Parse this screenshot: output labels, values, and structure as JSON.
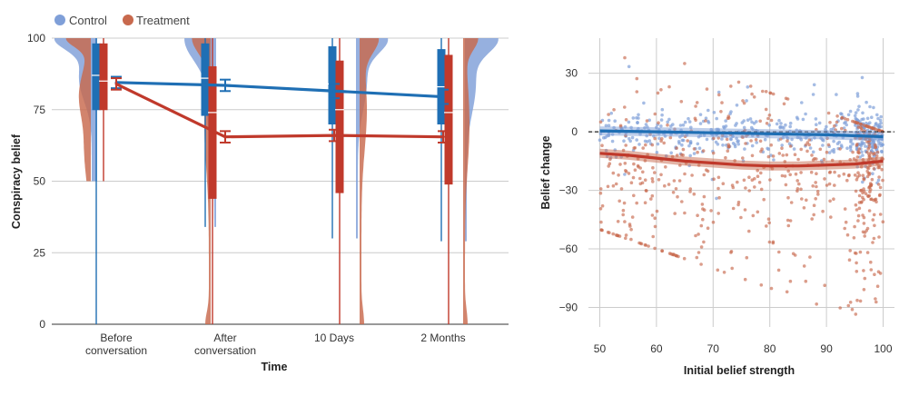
{
  "colors": {
    "control": "#1f6fb4",
    "treatment": "#c0392b",
    "control_fill": "#7f9fd8",
    "treatment_fill": "#c8694d",
    "grid": "#cccccc",
    "zero_line": "#222222"
  },
  "legend": {
    "control_label": "Control",
    "treatment_label": "Treatment"
  },
  "chart_data": [
    {
      "type": "line",
      "xlabel": "Time",
      "ylabel": "Conspiracy belief",
      "ylim": [
        0,
        100
      ],
      "yticks": [
        0,
        25,
        50,
        75,
        100
      ],
      "categories": [
        "Before conversation",
        "After conversation",
        "10 Days",
        "2 Months"
      ],
      "grid": "horizontal",
      "series": [
        {
          "name": "Control",
          "values": [
            84.5,
            83.5,
            81.5,
            79.5
          ],
          "ci": [
            2.0,
            2.0,
            2.5,
            2.5
          ],
          "box": [
            {
              "q1": 75,
              "median": 87,
              "q3": 98,
              "whisker_low": 0,
              "whisker_high": 100
            },
            {
              "q1": 73,
              "median": 86,
              "q3": 98,
              "whisker_low": 34,
              "whisker_high": 100
            },
            {
              "q1": 70,
              "median": 84,
              "q3": 97,
              "whisker_low": 30,
              "whisker_high": 100
            },
            {
              "q1": 70,
              "median": 83,
              "q3": 96,
              "whisker_low": 29,
              "whisker_high": 100
            }
          ]
        },
        {
          "name": "Treatment",
          "values": [
            84.0,
            65.5,
            66.0,
            65.5
          ],
          "ci": [
            2.0,
            2.0,
            2.0,
            2.0
          ],
          "box": [
            {
              "q1": 75,
              "median": 85,
              "q3": 98,
              "whisker_low": 50,
              "whisker_high": 100
            },
            {
              "q1": 44,
              "median": 74,
              "q3": 90,
              "whisker_low": 0,
              "whisker_high": 100
            },
            {
              "q1": 46,
              "median": 75,
              "q3": 92,
              "whisker_low": 0,
              "whisker_high": 100
            },
            {
              "q1": 49,
              "median": 74,
              "q3": 94,
              "whisker_low": 0,
              "whisker_high": 100
            }
          ]
        }
      ]
    },
    {
      "type": "scatter",
      "xlabel": "Initial belief strength",
      "ylabel": "Belief change",
      "xlim": [
        48,
        102
      ],
      "ylim": [
        -100,
        48
      ],
      "xticks": [
        50,
        60,
        70,
        80,
        90,
        100
      ],
      "yticks": [
        30,
        0,
        -30,
        -60,
        -90
      ],
      "grid": "both",
      "reference_line_y": 0,
      "series": [
        {
          "name": "Control",
          "trend_x": [
            50,
            60,
            70,
            80,
            90,
            100
          ],
          "trend_y": [
            0.5,
            0.0,
            -0.5,
            -1.0,
            -1.5,
            -2.5
          ]
        },
        {
          "name": "Treatment",
          "trend_x": [
            50,
            55,
            60,
            65,
            70,
            75,
            80,
            85,
            90,
            95,
            100
          ],
          "trend_y": [
            -11,
            -12,
            -13.5,
            -15,
            -16,
            -17,
            -17.5,
            -17.5,
            -17,
            -16.5,
            -15
          ]
        }
      ]
    }
  ]
}
